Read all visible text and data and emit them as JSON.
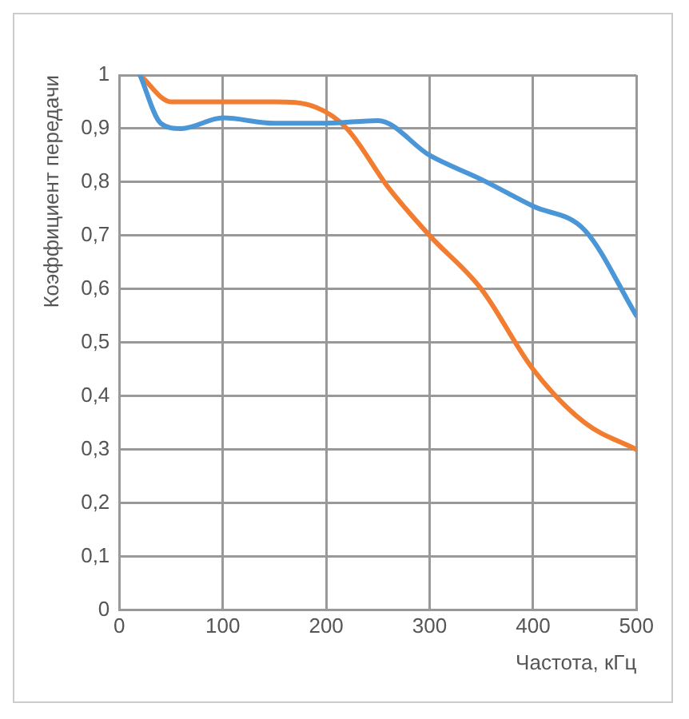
{
  "chart_data": {
    "type": "line",
    "xlabel": "Частота, кГц",
    "ylabel": "Коэффициент передачи",
    "xlim": [
      0,
      500
    ],
    "xticks": [
      0,
      100,
      200,
      300,
      400,
      500
    ],
    "ylim": [
      0,
      1
    ],
    "yticks": [
      0,
      {
        "value": 0.1,
        "label": "0,1"
      },
      {
        "value": 0.2,
        "label": "0,2"
      },
      {
        "value": 0.3,
        "label": "0,3"
      },
      {
        "value": 0.4,
        "label": "0,4"
      },
      {
        "value": 0.5,
        "label": "0,5"
      },
      {
        "value": 0.6,
        "label": "0,6"
      },
      {
        "value": 0.7,
        "label": "0,7"
      },
      {
        "value": 0.8,
        "label": "0,8"
      },
      {
        "value": 0.9,
        "label": "0,9"
      },
      1
    ],
    "grid": true,
    "marker": "none",
    "line_style": "solid",
    "series": [
      {
        "color": "#4a96d6",
        "x": [
          20,
          40,
          60,
          100,
          150,
          200,
          250,
          300,
          350,
          400,
          450,
          500
        ],
        "values": [
          1,
          0.91,
          0.9,
          0.92,
          0.91,
          0.91,
          0.915,
          0.85,
          0.805,
          0.755,
          0.71,
          0.55
        ]
      },
      {
        "color": "#f27c30",
        "x": [
          20,
          50,
          100,
          150,
          190,
          220,
          260,
          300,
          350,
          400,
          450,
          500
        ],
        "values": [
          1,
          0.95,
          0.95,
          0.95,
          0.94,
          0.9,
          0.79,
          0.7,
          0.6,
          0.45,
          0.35,
          0.3
        ]
      }
    ]
  }
}
